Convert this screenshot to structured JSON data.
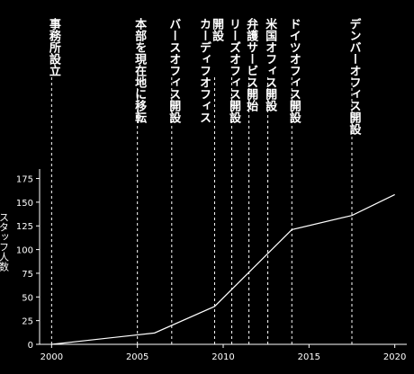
{
  "chart_data": {
    "type": "line",
    "title": "",
    "xlabel": "",
    "ylabel": "スタッフ人数",
    "xlim": [
      1999.3,
      2020.7
    ],
    "ylim": [
      0,
      185
    ],
    "x_ticks": [
      2000,
      2005,
      2010,
      2015,
      2020
    ],
    "y_ticks": [
      0,
      25,
      50,
      75,
      100,
      125,
      150,
      175
    ],
    "grid": false,
    "series": [
      {
        "x": [
          2000,
          2006,
          2009.5,
          2014,
          2017.5,
          2020
        ],
        "y": [
          0,
          12,
          40,
          121,
          136,
          158
        ],
        "color": "#ffffff"
      }
    ],
    "annotations": [
      {
        "x": 2000,
        "lines": [
          "事務所設立"
        ]
      },
      {
        "x": 2005,
        "lines": [
          "本部を現在地に移転"
        ]
      },
      {
        "x": 2007,
        "lines": [
          "バースオフィス開設"
        ]
      },
      {
        "x": 2009.5,
        "lines": [
          "カーディフオフィス",
          "開設"
        ]
      },
      {
        "x": 2010.5,
        "lines": [
          "リーズオフィス開設"
        ]
      },
      {
        "x": 2011.5,
        "lines": [
          "弁護サービス開始"
        ]
      },
      {
        "x": 2012.6,
        "lines": [
          "米国オフィス開設"
        ]
      },
      {
        "x": 2014,
        "lines": [
          "ドイツオフィス開設"
        ]
      },
      {
        "x": 2017.5,
        "lines": [
          "デンバーオフィス開設"
        ]
      }
    ],
    "colors": {
      "background": "#000000",
      "foreground": "#ffffff"
    }
  }
}
